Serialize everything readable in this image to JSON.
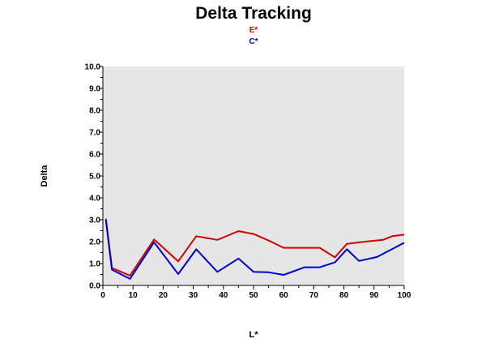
{
  "chart_data": {
    "type": "line",
    "title": "Delta Tracking",
    "xlabel": "L*",
    "ylabel": "Delta",
    "xlim": [
      0,
      100
    ],
    "ylim": [
      0,
      10
    ],
    "x_ticks": [
      "0",
      "10",
      "20",
      "30",
      "40",
      "50",
      "60",
      "70",
      "80",
      "90",
      "100"
    ],
    "y_ticks": [
      "0.0",
      "1.0",
      "2.0",
      "3.0",
      "4.0",
      "5.0",
      "6.0",
      "7.0",
      "8.0",
      "9.0",
      "10.0"
    ],
    "grid": false,
    "legend_position": "top-center",
    "plot_background": "#e6e6e6",
    "series": [
      {
        "name": "E*",
        "color": "#d40000",
        "points": [
          [
            1,
            3.05
          ],
          [
            3,
            0.8
          ],
          [
            9,
            0.45
          ],
          [
            17,
            2.1
          ],
          [
            25,
            1.1
          ],
          [
            31,
            2.25
          ],
          [
            38,
            2.08
          ],
          [
            45,
            2.48
          ],
          [
            50,
            2.35
          ],
          [
            55,
            2.05
          ],
          [
            60,
            1.72
          ],
          [
            67,
            1.72
          ],
          [
            72,
            1.72
          ],
          [
            77,
            1.28
          ],
          [
            81,
            1.9
          ],
          [
            87,
            2.0
          ],
          [
            93,
            2.08
          ],
          [
            96,
            2.25
          ],
          [
            100,
            2.32
          ]
        ]
      },
      {
        "name": "C*",
        "color": "#0000cc",
        "points": [
          [
            1,
            3.0
          ],
          [
            3,
            0.72
          ],
          [
            9,
            0.3
          ],
          [
            17,
            1.97
          ],
          [
            25,
            0.52
          ],
          [
            31,
            1.65
          ],
          [
            38,
            0.62
          ],
          [
            45,
            1.23
          ],
          [
            50,
            0.62
          ],
          [
            55,
            0.6
          ],
          [
            60,
            0.48
          ],
          [
            67,
            0.83
          ],
          [
            72,
            0.83
          ],
          [
            77,
            1.05
          ],
          [
            81,
            1.65
          ],
          [
            85,
            1.12
          ],
          [
            91,
            1.3
          ],
          [
            100,
            1.95
          ]
        ]
      }
    ]
  }
}
